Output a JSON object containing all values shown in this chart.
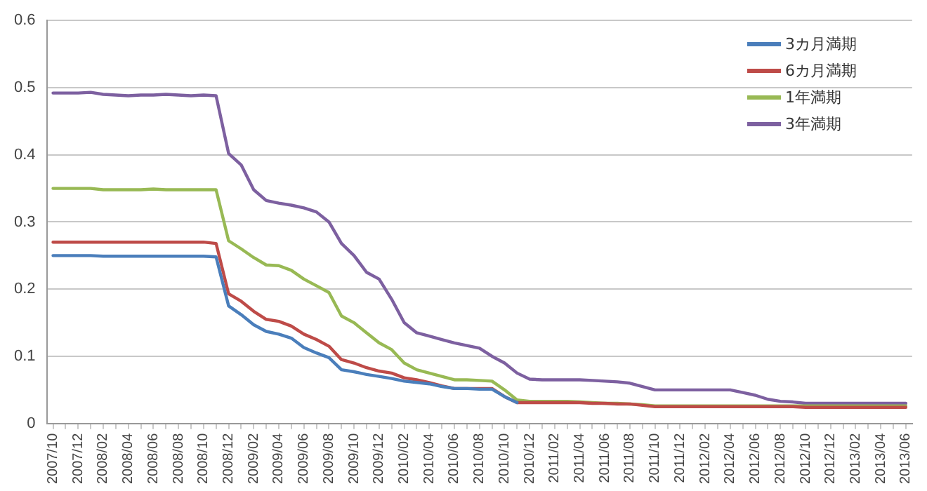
{
  "chart_data": {
    "type": "line",
    "categories": [
      "2007/10",
      null,
      "2007/12",
      null,
      "2008/02",
      null,
      "2008/04",
      null,
      "2008/06",
      null,
      "2008/08",
      null,
      "2008/10",
      null,
      "2008/12",
      null,
      "2009/02",
      null,
      "2009/04",
      null,
      "2009/06",
      null,
      "2009/08",
      null,
      "2009/10",
      null,
      "2009/12",
      null,
      "2010/02",
      null,
      "2010/04",
      null,
      "2010/06",
      null,
      "2010/08",
      null,
      "2010/10",
      null,
      "2010/12",
      null,
      "2011/02",
      null,
      "2011/04",
      null,
      "2011/06",
      null,
      "2011/08",
      null,
      "2011/10",
      null,
      "2011/12",
      null,
      "2012/02",
      null,
      "2012/04",
      null,
      "2012/06",
      null,
      "2012/08",
      null,
      "2012/10",
      null,
      "2012/12",
      null,
      "2013/02",
      null,
      "2013/04",
      null,
      "2013/06"
    ],
    "series": [
      {
        "name": "3カ月満期",
        "color": "#4a7ebb",
        "values": [
          0.25,
          0.25,
          0.25,
          0.25,
          0.249,
          0.249,
          0.249,
          0.249,
          0.249,
          0.249,
          0.249,
          0.249,
          0.249,
          0.248,
          0.175,
          0.162,
          0.147,
          0.137,
          0.133,
          0.127,
          0.113,
          0.105,
          0.098,
          0.08,
          0.077,
          0.073,
          0.07,
          0.067,
          0.063,
          0.061,
          0.059,
          0.055,
          0.052,
          0.052,
          0.051,
          0.051,
          0.04,
          0.031,
          null,
          null,
          null,
          null,
          null,
          null,
          null,
          null,
          null,
          null,
          null,
          null,
          null,
          null,
          null,
          null,
          null,
          null,
          null,
          null,
          null,
          null,
          null,
          null,
          null,
          null,
          null,
          null,
          null,
          null,
          null
        ]
      },
      {
        "name": "6カ月満期",
        "color": "#be4b48",
        "values": [
          0.27,
          0.27,
          0.27,
          0.27,
          0.27,
          0.27,
          0.27,
          0.27,
          0.27,
          0.27,
          0.27,
          0.27,
          0.27,
          0.268,
          0.193,
          0.182,
          0.167,
          0.155,
          0.152,
          0.145,
          0.133,
          0.125,
          0.115,
          0.095,
          0.09,
          0.083,
          0.078,
          0.075,
          0.068,
          0.065,
          0.061,
          0.056,
          0.052,
          0.052,
          0.052,
          0.052,
          0.04,
          0.031,
          0.031,
          0.031,
          0.031,
          0.031,
          0.031,
          0.03,
          0.03,
          0.029,
          0.029,
          0.027,
          0.025,
          0.025,
          0.025,
          0.025,
          0.025,
          0.025,
          0.025,
          0.025,
          0.025,
          0.025,
          0.025,
          0.025,
          0.024,
          0.024,
          0.024,
          0.024,
          0.024,
          0.024,
          0.024,
          0.024,
          0.024
        ]
      },
      {
        "name": "1年満期",
        "color": "#98b954",
        "values": [
          0.35,
          0.35,
          0.35,
          0.35,
          0.348,
          0.348,
          0.348,
          0.348,
          0.349,
          0.348,
          0.348,
          0.348,
          0.348,
          0.348,
          0.272,
          0.26,
          0.247,
          0.236,
          0.235,
          0.228,
          0.215,
          0.205,
          0.195,
          0.16,
          0.15,
          0.135,
          0.12,
          0.11,
          0.09,
          0.08,
          0.075,
          0.07,
          0.065,
          0.065,
          0.064,
          0.063,
          0.05,
          0.035,
          0.033,
          0.033,
          0.033,
          0.033,
          0.032,
          0.031,
          0.03,
          0.03,
          0.029,
          0.028,
          0.026,
          0.026,
          0.026,
          0.026,
          0.026,
          0.026,
          0.026,
          0.026,
          0.026,
          0.026,
          0.026,
          0.026,
          0.026,
          0.026,
          0.026,
          0.026,
          0.026,
          0.026,
          0.026,
          0.026,
          0.026
        ]
      },
      {
        "name": "3年満期",
        "color": "#7d60a0",
        "values": [
          0.492,
          0.492,
          0.492,
          0.493,
          0.49,
          0.489,
          0.488,
          0.489,
          0.489,
          0.49,
          0.489,
          0.488,
          0.489,
          0.488,
          0.402,
          0.385,
          0.348,
          0.332,
          0.328,
          0.325,
          0.321,
          0.315,
          0.3,
          0.268,
          0.25,
          0.225,
          0.215,
          0.185,
          0.15,
          0.135,
          0.13,
          0.125,
          0.12,
          0.116,
          0.112,
          0.1,
          0.09,
          0.075,
          0.066,
          0.065,
          0.065,
          0.065,
          0.065,
          0.064,
          0.063,
          0.062,
          0.06,
          0.055,
          0.05,
          0.05,
          0.05,
          0.05,
          0.05,
          0.05,
          0.05,
          0.046,
          0.042,
          0.036,
          0.033,
          0.032,
          0.03,
          0.03,
          0.03,
          0.03,
          0.03,
          0.03,
          0.03,
          0.03,
          0.03
        ]
      }
    ],
    "ylim": [
      0,
      0.6
    ],
    "yticks": [
      0,
      0.1,
      0.2,
      0.3,
      0.4,
      0.5,
      0.6
    ],
    "grid": "y",
    "legend": "top right",
    "marker": "none",
    "line_style": "solid"
  }
}
